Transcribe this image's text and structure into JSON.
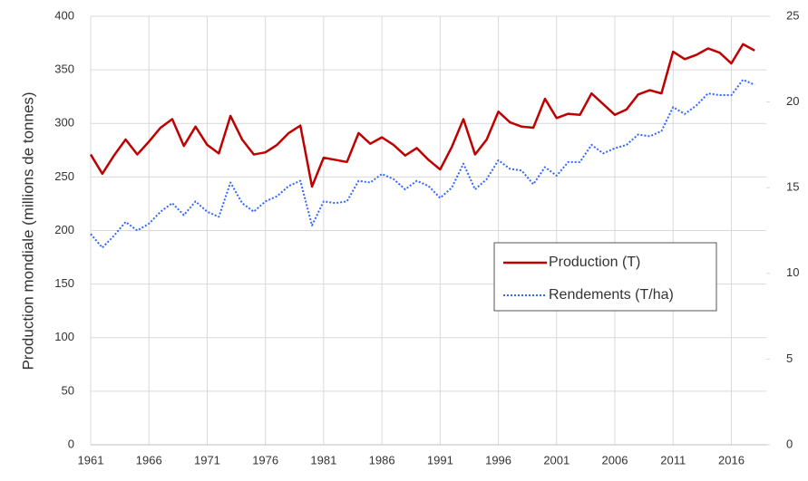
{
  "chart_data": {
    "type": "line",
    "y_label": "Production mondiale (millions de tonnes)",
    "x": [
      1961,
      1962,
      1963,
      1964,
      1965,
      1966,
      1967,
      1968,
      1969,
      1970,
      1971,
      1972,
      1973,
      1974,
      1975,
      1976,
      1977,
      1978,
      1979,
      1980,
      1981,
      1982,
      1983,
      1984,
      1985,
      1986,
      1987,
      1988,
      1989,
      1990,
      1991,
      1992,
      1993,
      1994,
      1995,
      1996,
      1997,
      1998,
      1999,
      2000,
      2001,
      2002,
      2003,
      2004,
      2005,
      2006,
      2007,
      2008,
      2009,
      2010,
      2011,
      2012,
      2013,
      2014,
      2015,
      2016,
      2017,
      2018
    ],
    "series": [
      {
        "name": "Production (T)",
        "color": "#c00000",
        "style": "solid",
        "values": [
          271,
          253,
          270,
          285,
          271,
          283,
          296,
          304,
          279,
          297,
          280,
          272,
          307,
          285,
          271,
          273,
          280,
          291,
          298,
          241,
          268,
          266,
          264,
          291,
          281,
          287,
          280,
          270,
          277,
          266,
          257,
          278,
          304,
          271,
          285,
          311,
          301,
          297,
          296,
          323,
          305,
          309,
          308,
          328,
          318,
          308,
          313,
          327,
          331,
          328,
          367,
          360,
          364,
          370,
          366,
          356,
          374,
          368
        ]
      },
      {
        "name": "Rendements (T/ha)",
        "color": "#3366ff",
        "style": "dotted",
        "axis": "y2",
        "values": [
          12.3,
          11.5,
          12.2,
          13.0,
          12.5,
          12.9,
          13.6,
          14.1,
          13.4,
          14.2,
          13.6,
          13.3,
          15.3,
          14.1,
          13.6,
          14.2,
          14.5,
          15.1,
          15.4,
          12.8,
          14.2,
          14.1,
          14.2,
          15.4,
          15.3,
          15.8,
          15.5,
          14.9,
          15.4,
          15.1,
          14.4,
          15.0,
          16.4,
          14.9,
          15.5,
          16.6,
          16.1,
          16.0,
          15.2,
          16.2,
          15.7,
          16.5,
          16.5,
          17.5,
          17.0,
          17.3,
          17.5,
          18.1,
          18.0,
          18.3,
          19.7,
          19.3,
          19.8,
          20.5,
          20.4,
          20.4,
          21.3,
          21.0
        ]
      }
    ],
    "xlim": [
      1961,
      2019
    ],
    "xticks": [
      1961,
      1966,
      1971,
      1976,
      1981,
      1986,
      1991,
      1996,
      2001,
      2006,
      2011,
      2016
    ],
    "ylim": [
      0,
      400
    ],
    "yticks": [
      0,
      50,
      100,
      150,
      200,
      250,
      300,
      350,
      400
    ],
    "y2lim": [
      0,
      25
    ],
    "y2ticks": [
      0,
      5,
      10,
      15,
      20,
      25
    ],
    "grid": true,
    "legend": "center-right"
  }
}
